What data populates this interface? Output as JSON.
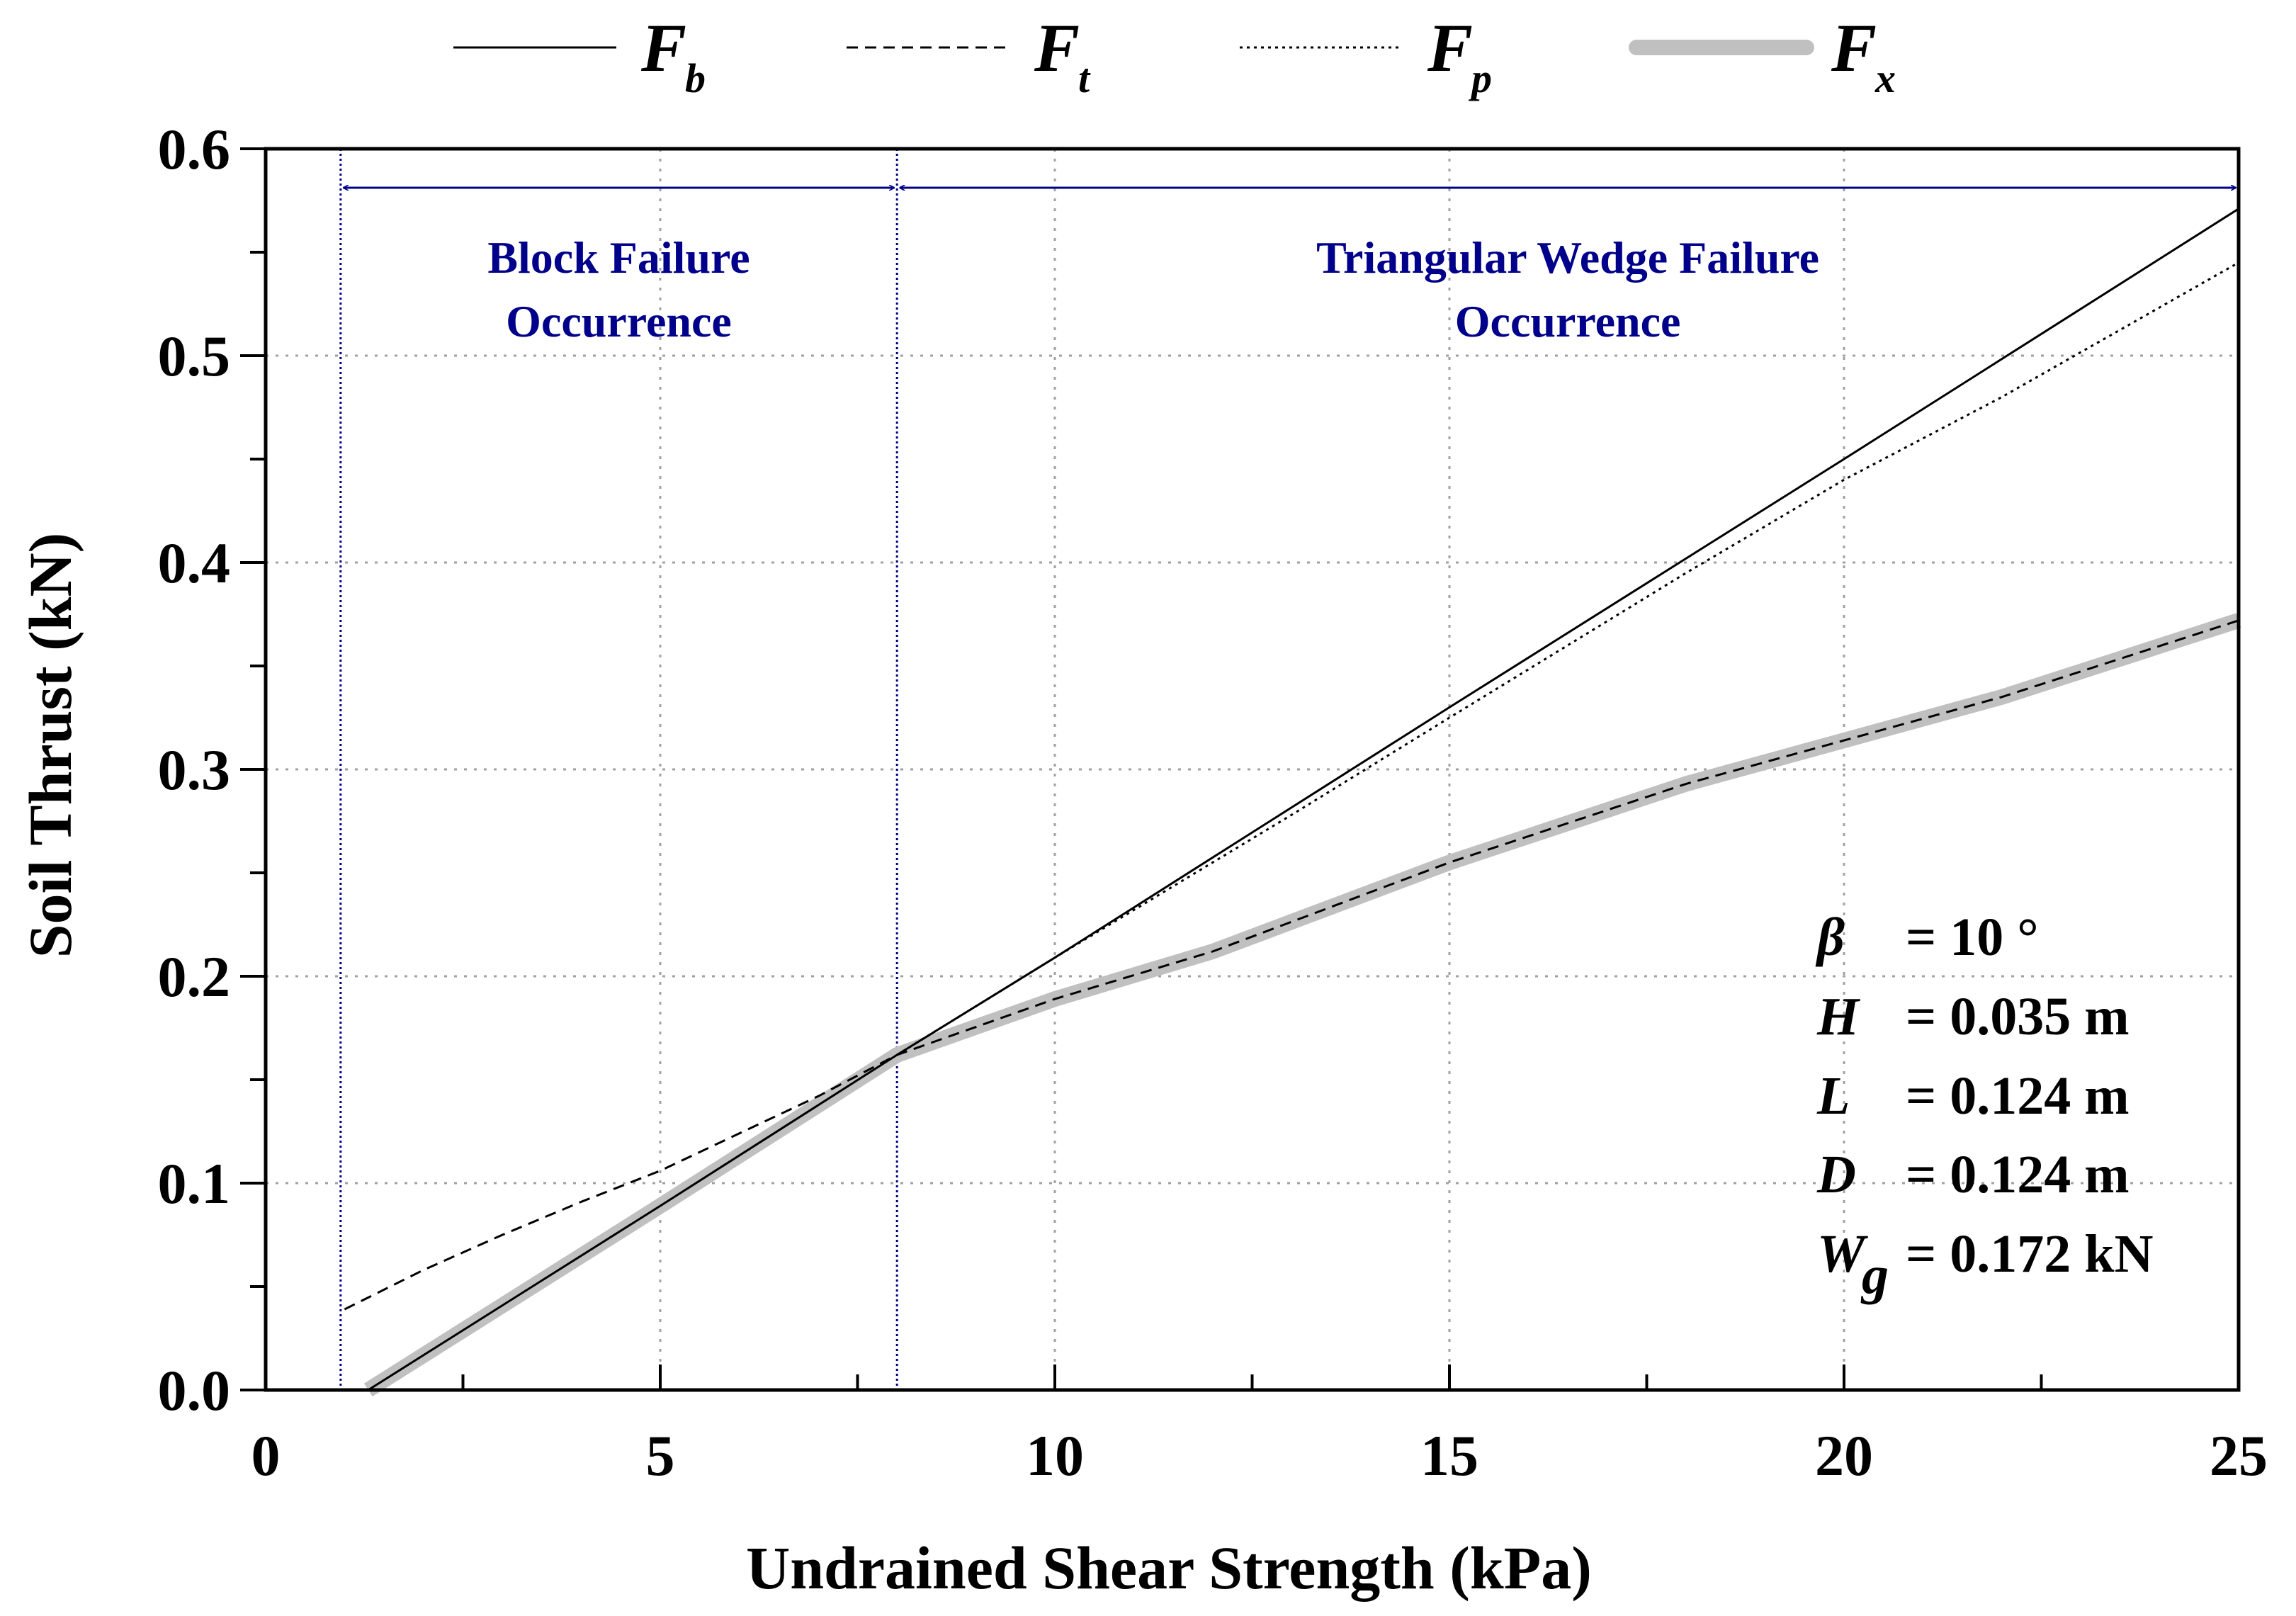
{
  "chart_data": {
    "type": "line",
    "title": "",
    "xlabel": "Undrained Shear Strength (kPa)",
    "ylabel": "Soil Thrust (kN)",
    "xlim": [
      0,
      25
    ],
    "ylim": [
      0,
      0.6
    ],
    "x_ticks": [
      0,
      5,
      10,
      15,
      20,
      25
    ],
    "x_tick_labels": [
      "0",
      "5",
      "10",
      "15",
      "20",
      "25"
    ],
    "y_ticks": [
      0,
      0.1,
      0.2,
      0.3,
      0.4,
      0.5,
      0.6
    ],
    "y_tick_labels": [
      "0.0",
      "0.1",
      "0.2",
      "0.3",
      "0.4",
      "0.5",
      "0.6"
    ],
    "grid": true,
    "legend_position": "top",
    "series": [
      {
        "name": "F_b",
        "label": "F",
        "subscript": "b",
        "style": "solid",
        "x": [
          1.3,
          5,
          8,
          10,
          15,
          20,
          25
        ],
        "y": [
          0,
          0.089,
          0.162,
          0.209,
          0.33,
          0.45,
          0.571
        ]
      },
      {
        "name": "F_t",
        "label": "F",
        "subscript": "t",
        "style": "dashed",
        "x": [
          1,
          2,
          3,
          4,
          5,
          6,
          7,
          8,
          10,
          12,
          15,
          18,
          20,
          22,
          25
        ],
        "y": [
          0.039,
          0.058,
          0.075,
          0.091,
          0.106,
          0.124,
          0.142,
          0.162,
          0.189,
          0.212,
          0.255,
          0.293,
          0.314,
          0.335,
          0.372
        ]
      },
      {
        "name": "F_p",
        "label": "F",
        "subscript": "p",
        "style": "dotted",
        "x": [
          8,
          10,
          13,
          15,
          18,
          20,
          22,
          25
        ],
        "y": [
          0.162,
          0.209,
          0.278,
          0.325,
          0.395,
          0.44,
          0.48,
          0.545
        ]
      },
      {
        "name": "F_x",
        "label": "F",
        "subscript": "x",
        "style": "thick-gray",
        "x": [
          1.3,
          5,
          8,
          10,
          12,
          15,
          18,
          20,
          22,
          25
        ],
        "y": [
          0,
          0.089,
          0.162,
          0.189,
          0.212,
          0.255,
          0.293,
          0.314,
          0.335,
          0.372
        ]
      }
    ],
    "regions": [
      {
        "label_line1": "Block Failure",
        "label_line2": "Occurrence",
        "x_start": 0.95,
        "x_end": 8
      },
      {
        "label_line1": "Triangular Wedge Failure",
        "label_line2": "Occurrence",
        "x_start": 8,
        "x_end": 25
      }
    ],
    "colors": {
      "line": "#000000",
      "envelope": "#c0c0c0",
      "region": "#00008b",
      "grid": "#a0a0a0"
    }
  },
  "parameters": [
    {
      "symbol": "β",
      "subscript": "",
      "value": "= 10 °"
    },
    {
      "symbol": "H",
      "subscript": "",
      "value": "= 0.035 m"
    },
    {
      "symbol": "L",
      "subscript": "",
      "value": "= 0.124 m"
    },
    {
      "symbol": "D",
      "subscript": "",
      "value": "= 0.124 m"
    },
    {
      "symbol": "W",
      "subscript": "g",
      "value": "= 0.172 kN"
    }
  ]
}
